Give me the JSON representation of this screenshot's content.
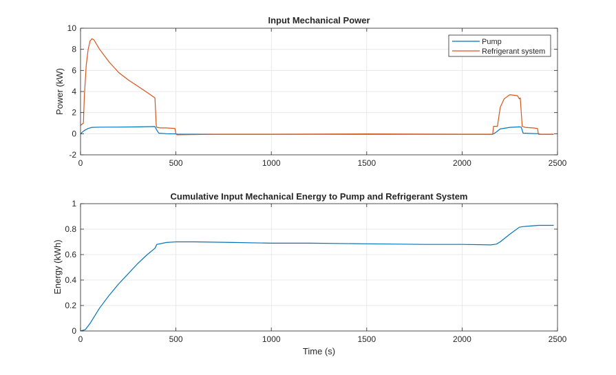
{
  "chart_data": [
    {
      "type": "line",
      "title": "Input Mechanical Power",
      "xlabel": "",
      "ylabel": "Power (kW)",
      "xlim": [
        0,
        2500
      ],
      "ylim": [
        -2,
        10
      ],
      "xticks": [
        0,
        500,
        1000,
        1500,
        2000,
        2500
      ],
      "yticks": [
        -2,
        0,
        2,
        4,
        6,
        8,
        10
      ],
      "grid": true,
      "legend_position": "top-right",
      "series": [
        {
          "name": "Pump",
          "color": "#0072BD",
          "x": [
            0,
            20,
            40,
            60,
            100,
            200,
            300,
            390,
            398,
            410,
            450,
            500,
            510,
            700,
            1000,
            1500,
            2000,
            2160,
            2175,
            2200,
            2250,
            2300,
            2310,
            2320,
            2400,
            2410,
            2480
          ],
          "y": [
            0.0,
            0.3,
            0.5,
            0.6,
            0.62,
            0.63,
            0.65,
            0.68,
            0.4,
            0.05,
            0.0,
            -0.02,
            -0.05,
            -0.05,
            -0.05,
            -0.05,
            -0.05,
            -0.05,
            0.1,
            0.45,
            0.6,
            0.65,
            0.62,
            0.05,
            0.0,
            -0.05,
            -0.05
          ]
        },
        {
          "name": "Refrigerant system",
          "color": "#D95319",
          "x": [
            0,
            15,
            20,
            30,
            40,
            50,
            60,
            70,
            80,
            100,
            150,
            200,
            250,
            300,
            350,
            390,
            397,
            400,
            420,
            450,
            495,
            500,
            505,
            700,
            1000,
            1500,
            2000,
            2160,
            2165,
            2180,
            2185,
            2200,
            2220,
            2250,
            2290,
            2300,
            2305,
            2315,
            2330,
            2370,
            2395,
            2400,
            2420,
            2480
          ],
          "y": [
            0.8,
            1.0,
            3.5,
            6.5,
            8.0,
            8.8,
            9.0,
            8.9,
            8.6,
            8.0,
            6.8,
            5.8,
            5.1,
            4.5,
            3.9,
            3.4,
            0.8,
            0.6,
            0.55,
            0.55,
            0.5,
            0.0,
            -0.1,
            -0.05,
            -0.05,
            -0.02,
            -0.05,
            -0.05,
            0.7,
            0.7,
            0.7,
            2.5,
            3.3,
            3.7,
            3.6,
            3.3,
            3.4,
            0.7,
            0.6,
            0.55,
            0.5,
            -0.05,
            -0.05,
            -0.05
          ]
        }
      ]
    },
    {
      "type": "line",
      "title": "Cumulative Input Mechanical Energy to Pump and Refrigerant System",
      "xlabel": "Time (s)",
      "ylabel": "Energy (kWh)",
      "xlim": [
        0,
        2500
      ],
      "ylim": [
        0,
        1
      ],
      "xticks": [
        0,
        500,
        1000,
        1500,
        2000,
        2500
      ],
      "yticks": [
        0,
        0.2,
        0.4,
        0.6,
        0.8,
        1
      ],
      "grid": true,
      "series": [
        {
          "color": "#0072BD",
          "x": [
            0,
            25,
            50,
            100,
            150,
            200,
            250,
            300,
            350,
            390,
            400,
            450,
            500,
            600,
            800,
            1000,
            1200,
            1500,
            1800,
            2000,
            2150,
            2180,
            2200,
            2250,
            2300,
            2320,
            2400,
            2480
          ],
          "y": [
            0.0,
            0.01,
            0.06,
            0.18,
            0.28,
            0.37,
            0.45,
            0.53,
            0.6,
            0.65,
            0.68,
            0.695,
            0.7,
            0.7,
            0.695,
            0.69,
            0.69,
            0.685,
            0.68,
            0.68,
            0.676,
            0.682,
            0.7,
            0.76,
            0.815,
            0.82,
            0.83,
            0.83
          ]
        }
      ]
    }
  ]
}
